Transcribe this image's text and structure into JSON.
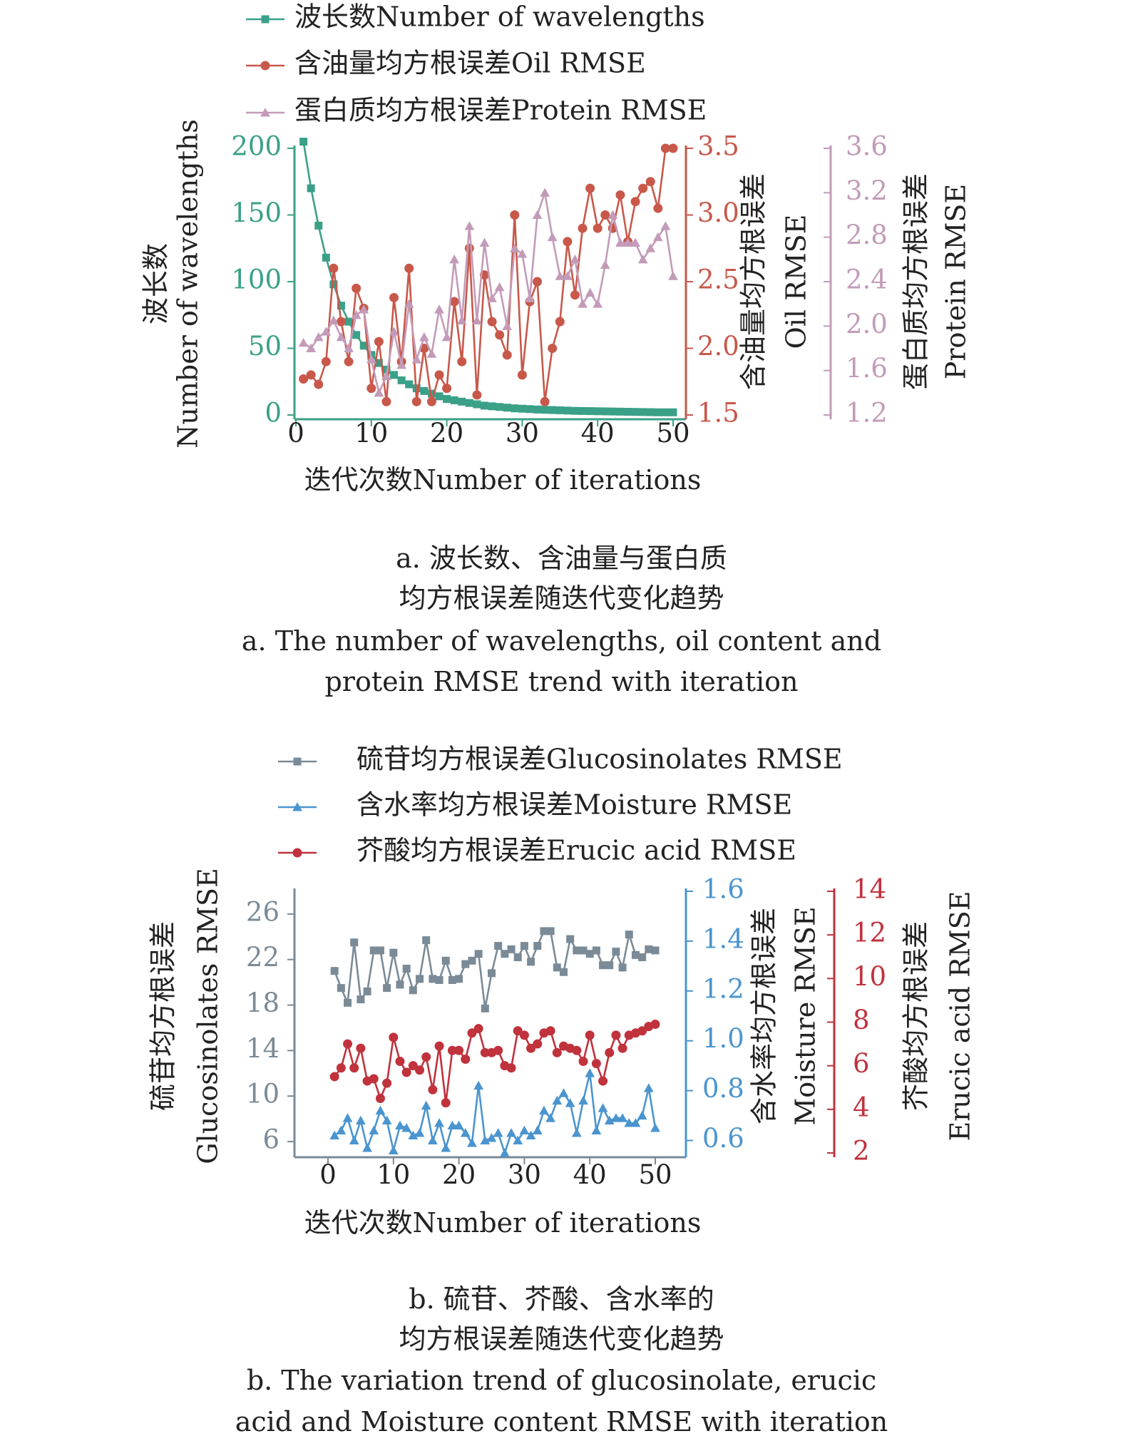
{
  "chart_data": [
    {
      "id": "a",
      "type": "line",
      "x": [
        1,
        2,
        3,
        4,
        5,
        6,
        7,
        8,
        9,
        10,
        11,
        12,
        13,
        14,
        15,
        16,
        17,
        18,
        19,
        20,
        21,
        22,
        23,
        24,
        25,
        26,
        27,
        28,
        29,
        30,
        31,
        32,
        33,
        34,
        35,
        36,
        37,
        38,
        39,
        40,
        41,
        42,
        43,
        44,
        45,
        46,
        47,
        48,
        49,
        50
      ],
      "xlim": [
        0,
        50
      ],
      "xticks": [
        "0",
        "10",
        "20",
        "30",
        "40",
        "50"
      ],
      "xlabel": "迭代次数Number of iterations",
      "axes": {
        "left": {
          "ylabel_cn": "波长数",
          "ylabel_en": "Number of wavelengths",
          "ylim": [
            0,
            200
          ],
          "ticks": [
            "0",
            "50",
            "100",
            "150",
            "200"
          ],
          "color": "#3aa087"
        },
        "right1": {
          "ylabel_cn": "含油量均方根误差",
          "ylabel_en": "Oil RMSE",
          "ylim": [
            1.5,
            3.5
          ],
          "ticks": [
            "1.5",
            "2.0",
            "2.5",
            "3.0",
            "3.5"
          ],
          "color": "#c8584a"
        },
        "right2": {
          "ylabel_cn": "蛋白质均方根误差",
          "ylabel_en": "Protein RMSE",
          "ylim": [
            1.2,
            3.6
          ],
          "ticks": [
            "1.2",
            "1.6",
            "2.0",
            "2.4",
            "2.8",
            "3.2",
            "3.6"
          ],
          "color": "#c39bb8"
        }
      },
      "series": [
        {
          "name": "波长数Number of wavelengths",
          "axis": "left",
          "marker": "square",
          "color": "#3aa087",
          "values": [
            205,
            170,
            142,
            118,
            98,
            82,
            70,
            60,
            52,
            45,
            39,
            34,
            30,
            26,
            23,
            20,
            18,
            16,
            14,
            12,
            11,
            10,
            9,
            8,
            7,
            6.5,
            6,
            5.5,
            5,
            4.7,
            4.4,
            4.1,
            3.9,
            3.7,
            3.5,
            3.3,
            3.1,
            3.0,
            2.9,
            2.8,
            2.7,
            2.6,
            2.5,
            2.4,
            2.3,
            2.2,
            2.1,
            2.0,
            2.0,
            2.0
          ]
        },
        {
          "name": "含油量均方根误差Oil RMSE",
          "axis": "right1",
          "marker": "circle",
          "color": "#c8584a",
          "values": [
            1.77,
            1.8,
            1.73,
            1.9,
            2.6,
            2.2,
            1.9,
            2.45,
            2.3,
            1.7,
            2.05,
            1.6,
            2.38,
            1.9,
            2.6,
            1.6,
            2.0,
            1.6,
            1.8,
            1.7,
            2.35,
            1.9,
            2.75,
            1.65,
            2.55,
            2.2,
            2.1,
            1.95,
            3.0,
            1.8,
            2.35,
            2.5,
            1.6,
            2.0,
            2.2,
            2.8,
            2.4,
            2.9,
            3.2,
            2.9,
            3.0,
            2.9,
            3.15,
            2.8,
            3.1,
            3.2,
            3.25,
            3.05,
            3.5,
            3.5
          ]
        },
        {
          "name": "蛋白质均方根误差Protein RMSE",
          "axis": "right2",
          "marker": "triangle",
          "color": "#c39bb8",
          "values": [
            1.85,
            1.8,
            1.9,
            1.95,
            2.05,
            1.9,
            1.8,
            2.1,
            2.15,
            1.7,
            1.4,
            1.55,
            1.95,
            1.65,
            2.2,
            1.7,
            1.9,
            1.75,
            2.15,
            1.9,
            2.6,
            2.05,
            2.9,
            2.05,
            2.75,
            2.25,
            2.35,
            2.0,
            2.7,
            2.65,
            2.25,
            3.0,
            3.2,
            2.8,
            2.45,
            2.45,
            2.6,
            2.2,
            2.3,
            2.2,
            2.55,
            3.0,
            2.75,
            2.75,
            2.75,
            2.6,
            2.7,
            2.8,
            2.9,
            2.45
          ]
        }
      ],
      "legend_position": "top",
      "caption": [
        "a. 波长数、含油量与蛋白质",
        "均方根误差随迭代变化趋势",
        "a. The number of wavelengths, oil content and",
        "protein RMSE trend with iteration"
      ]
    },
    {
      "id": "b",
      "type": "line",
      "x": [
        1,
        2,
        3,
        4,
        5,
        6,
        7,
        8,
        9,
        10,
        11,
        12,
        13,
        14,
        15,
        16,
        17,
        18,
        19,
        20,
        21,
        22,
        23,
        24,
        25,
        26,
        27,
        28,
        29,
        30,
        31,
        32,
        33,
        34,
        35,
        36,
        37,
        38,
        39,
        40,
        41,
        42,
        43,
        44,
        45,
        46,
        47,
        48,
        49,
        50
      ],
      "xlim": [
        -3,
        52
      ],
      "xticks": [
        "0",
        "10",
        "20",
        "30",
        "40",
        "50"
      ],
      "xlabel": "迭代次数Number of iterations",
      "axes": {
        "left": {
          "ylabel_cn": "硫苷均方根误差",
          "ylabel_en": "Glucosinolates RMSE",
          "ylim": [
            5,
            28
          ],
          "ticks": [
            "6",
            "10",
            "14",
            "18",
            "22",
            "26"
          ],
          "color": "#7a8a96"
        },
        "right1": {
          "ylabel_cn": "含水率均方根误差",
          "ylabel_en": "Moisture RMSE",
          "ylim": [
            0.55,
            1.6
          ],
          "ticks": [
            "0.6",
            "0.8",
            "1.0",
            "1.2",
            "1.4",
            "1.6"
          ],
          "color": "#4b95cf"
        },
        "right2": {
          "ylabel_cn": "芥酸均方根误差",
          "ylabel_en": "Erucic acid RMSE",
          "ylim": [
            2,
            14
          ],
          "ticks": [
            "2",
            "4",
            "6",
            "8",
            "10",
            "12",
            "14"
          ],
          "color": "#c0323c"
        }
      },
      "series": [
        {
          "name": "硫苷均方根误差Glucosinolates RMSE",
          "axis": "left",
          "marker": "square",
          "color": "#7a8a96",
          "values": [
            21,
            19.5,
            18.2,
            23.5,
            18.5,
            19.2,
            22.8,
            22.8,
            19.5,
            22.6,
            19.8,
            21.2,
            19.3,
            20.3,
            23.7,
            20.3,
            20.2,
            21.9,
            20.2,
            20.3,
            21.6,
            21.9,
            22.5,
            17.7,
            20.8,
            23.2,
            22.5,
            22.9,
            22.2,
            23.2,
            21.8,
            23.2,
            24.5,
            24.5,
            21.3,
            20.9,
            23.8,
            22.8,
            22.8,
            22.5,
            22.8,
            21.5,
            21.5,
            22.7,
            21.3,
            24.2,
            22.4,
            22.2,
            22.9,
            22.8
          ]
        },
        {
          "name": "含水率均方根误差Moisture RMSE",
          "axis": "right1",
          "marker": "triangle",
          "color": "#4b95cf",
          "values": [
            0.62,
            0.64,
            0.69,
            0.6,
            0.68,
            0.57,
            0.64,
            0.72,
            0.68,
            0.56,
            0.66,
            0.65,
            0.62,
            0.63,
            0.74,
            0.6,
            0.67,
            0.57,
            0.66,
            0.66,
            0.63,
            0.59,
            0.82,
            0.6,
            0.61,
            0.63,
            0.55,
            0.63,
            0.6,
            0.64,
            0.62,
            0.64,
            0.72,
            0.69,
            0.76,
            0.79,
            0.75,
            0.63,
            0.76,
            0.87,
            0.64,
            0.73,
            0.68,
            0.69,
            0.69,
            0.67,
            0.67,
            0.7,
            0.81,
            0.65
          ]
        },
        {
          "name": "芥酸均方根误差Erucic acid RMSE",
          "axis": "right2",
          "marker": "circle",
          "color": "#c0323c",
          "values": [
            5.5,
            5.9,
            7.0,
            5.9,
            6.8,
            5.3,
            5.4,
            4.5,
            5.2,
            7.3,
            6.2,
            5.7,
            6.0,
            5.8,
            6.4,
            4.9,
            6.9,
            4.3,
            6.7,
            6.7,
            6.3,
            7.5,
            7.7,
            6.6,
            6.6,
            6.7,
            6.0,
            5.9,
            7.6,
            7.4,
            6.8,
            7.0,
            7.5,
            7.6,
            6.6,
            6.9,
            6.8,
            6.7,
            6.2,
            7.4,
            6.1,
            5.3,
            6.6,
            7.4,
            6.8,
            7.4,
            7.5,
            7.6,
            7.8,
            7.9
          ]
        }
      ],
      "legend_position": "top",
      "caption": [
        "b. 硫苷、芥酸、含水率的",
        "均方根误差随迭代变化趋势",
        "b. The variation trend of glucosinolate, erucic",
        "acid and Moisture content RMSE with iteration"
      ]
    }
  ]
}
